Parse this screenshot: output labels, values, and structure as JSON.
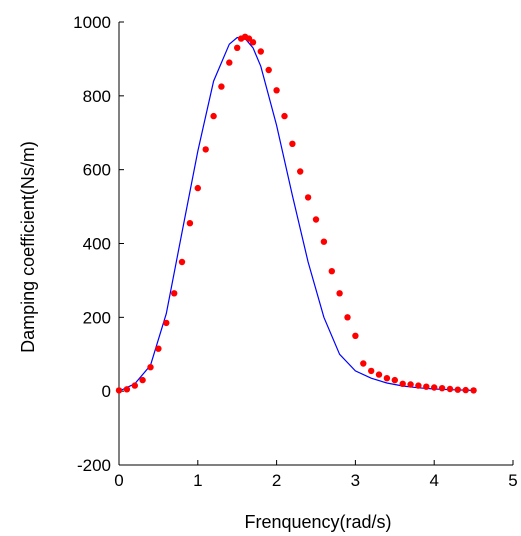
{
  "chart_data": {
    "type": "line",
    "title": "",
    "xlabel": "Frenquency(rad/s)",
    "ylabel": "Damping coefficient(Ns/m)",
    "xlim": [
      0,
      5
    ],
    "ylim": [
      -200,
      1000
    ],
    "x_ticks": [
      "0",
      "1",
      "2",
      "3",
      "4",
      "5"
    ],
    "y_ticks": [
      "1000",
      "800",
      "600",
      "400",
      "200",
      "0",
      "-200"
    ],
    "grid": false,
    "legend": "none",
    "series": [
      {
        "style": "line",
        "color": "#0000ff",
        "x": [
          0.0,
          0.2,
          0.4,
          0.6,
          0.8,
          1.0,
          1.2,
          1.4,
          1.5,
          1.6,
          1.7,
          1.8,
          2.0,
          2.2,
          2.4,
          2.6,
          2.8,
          3.0,
          3.2,
          3.4,
          3.6,
          3.8,
          4.0,
          4.2,
          4.5
        ],
        "y": [
          0,
          20,
          70,
          210,
          430,
          650,
          840,
          940,
          958,
          955,
          930,
          880,
          720,
          530,
          350,
          200,
          100,
          55,
          35,
          22,
          14,
          9,
          6,
          4,
          2
        ]
      },
      {
        "style": "markers",
        "color": "#ff0000",
        "x": [
          0.0,
          0.1,
          0.2,
          0.3,
          0.4,
          0.5,
          0.6,
          0.7,
          0.8,
          0.9,
          1.0,
          1.1,
          1.2,
          1.3,
          1.4,
          1.5,
          1.55,
          1.6,
          1.65,
          1.7,
          1.8,
          1.9,
          2.0,
          2.1,
          2.2,
          2.3,
          2.4,
          2.5,
          2.6,
          2.7,
          2.8,
          2.9,
          3.0,
          3.1,
          3.2,
          3.3,
          3.4,
          3.5,
          3.6,
          3.7,
          3.8,
          3.9,
          4.0,
          4.1,
          4.2,
          4.3,
          4.4,
          4.5
        ],
        "y": [
          2,
          5,
          15,
          30,
          65,
          115,
          185,
          265,
          350,
          455,
          550,
          655,
          745,
          825,
          890,
          930,
          955,
          960,
          955,
          945,
          920,
          870,
          815,
          745,
          670,
          595,
          525,
          465,
          405,
          325,
          265,
          200,
          150,
          75,
          55,
          45,
          35,
          30,
          20,
          18,
          15,
          12,
          10,
          8,
          6,
          4,
          3,
          2
        ]
      }
    ]
  }
}
